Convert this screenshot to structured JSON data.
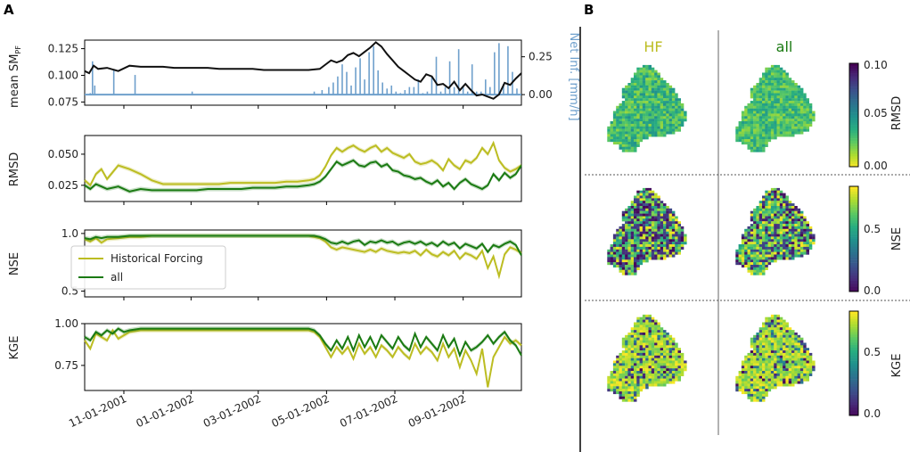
{
  "panels": {
    "a_label": "A",
    "b_label": "B"
  },
  "colors": {
    "hf": "#bcbd22",
    "all": "#1a7a12",
    "sm": "#111111",
    "inf": "#6fa0cc",
    "axis": "#000000"
  },
  "chart_data": [
    {
      "type": "line",
      "id": "mean_sm",
      "ylabel_main": "mean SM",
      "ylabel_sub": "PF",
      "ylim": [
        0.072,
        0.133
      ],
      "yticks": [
        0.075,
        0.1,
        0.125
      ],
      "ytick_labels": [
        "0.075",
        "0.100",
        "0.125"
      ],
      "x": [
        0,
        4,
        8,
        12,
        20,
        30,
        40,
        50,
        60,
        70,
        80,
        90,
        100,
        110,
        120,
        130,
        140,
        150,
        160,
        170,
        180,
        190,
        200,
        210,
        215,
        220,
        225,
        230,
        235,
        240,
        245,
        250,
        255,
        260,
        265,
        270,
        275,
        280,
        285,
        290,
        295,
        300,
        305,
        310,
        315,
        320,
        325,
        330,
        335,
        340,
        345,
        350,
        355,
        360,
        365,
        370,
        375,
        380,
        385,
        390
      ],
      "series": [
        {
          "name": "mean SM",
          "values": [
            0.104,
            0.102,
            0.109,
            0.106,
            0.107,
            0.104,
            0.109,
            0.108,
            0.108,
            0.108,
            0.107,
            0.107,
            0.107,
            0.107,
            0.106,
            0.106,
            0.106,
            0.106,
            0.105,
            0.105,
            0.105,
            0.105,
            0.105,
            0.106,
            0.11,
            0.114,
            0.112,
            0.114,
            0.119,
            0.121,
            0.118,
            0.122,
            0.126,
            0.131,
            0.127,
            0.12,
            0.114,
            0.108,
            0.104,
            0.1,
            0.096,
            0.094,
            0.101,
            0.099,
            0.091,
            0.092,
            0.088,
            0.094,
            0.086,
            0.092,
            0.086,
            0.081,
            0.082,
            0.08,
            0.078,
            0.082,
            0.093,
            0.091,
            0.097,
            0.102
          ]
        }
      ],
      "secondary": {
        "ylabel": "Net Inf. [mm/h]",
        "ylim": [
          -0.07,
          0.36
        ],
        "yticks": [
          0.0,
          0.25
        ],
        "ytick_labels": [
          "0.00",
          "0.25"
        ],
        "bars_x": [
          5,
          7,
          9,
          26,
          45,
          96,
          205,
          212,
          218,
          222,
          226,
          230,
          234,
          238,
          242,
          246,
          250,
          254,
          258,
          262,
          266,
          270,
          274,
          278,
          282,
          286,
          290,
          294,
          298,
          302,
          306,
          310,
          314,
          318,
          322,
          326,
          330,
          334,
          338,
          342,
          346,
          350,
          354,
          358,
          362,
          366,
          370,
          374,
          378,
          382,
          386
        ],
        "bars_v": [
          0.01,
          0.22,
          0.06,
          0.16,
          0.13,
          0.02,
          0.02,
          0.03,
          0.05,
          0.08,
          0.12,
          0.2,
          0.15,
          0.06,
          0.18,
          0.24,
          0.1,
          0.28,
          0.32,
          0.16,
          0.08,
          0.04,
          0.06,
          0.02,
          0.01,
          0.03,
          0.05,
          0.05,
          0.1,
          0.01,
          0.02,
          0.12,
          0.25,
          0.02,
          0.05,
          0.22,
          0.05,
          0.3,
          0.06,
          0.02,
          0.2,
          0.02,
          0.02,
          0.1,
          0.05,
          0.28,
          0.34,
          0.07,
          0.32,
          0.15,
          0.04
        ]
      }
    },
    {
      "type": "line",
      "id": "rmsd",
      "ylabel": "RMSD",
      "ylim": [
        0.012,
        0.065
      ],
      "yticks": [
        0.025,
        0.05
      ],
      "ytick_labels": [
        "0.025",
        "0.050"
      ],
      "x": [
        0,
        5,
        10,
        15,
        20,
        30,
        40,
        50,
        60,
        70,
        80,
        90,
        100,
        110,
        120,
        130,
        140,
        150,
        160,
        170,
        180,
        190,
        200,
        205,
        210,
        215,
        220,
        225,
        230,
        235,
        240,
        245,
        250,
        255,
        260,
        265,
        270,
        275,
        280,
        285,
        290,
        295,
        300,
        305,
        310,
        315,
        320,
        325,
        330,
        335,
        340,
        345,
        350,
        355,
        360,
        365,
        370,
        375,
        380,
        385,
        390
      ],
      "series": [
        {
          "name": "Historical Forcing",
          "values": [
            0.029,
            0.025,
            0.034,
            0.038,
            0.03,
            0.041,
            0.038,
            0.034,
            0.029,
            0.026,
            0.026,
            0.026,
            0.026,
            0.026,
            0.026,
            0.027,
            0.027,
            0.027,
            0.027,
            0.027,
            0.028,
            0.028,
            0.029,
            0.03,
            0.033,
            0.04,
            0.049,
            0.055,
            0.052,
            0.055,
            0.057,
            0.054,
            0.052,
            0.055,
            0.057,
            0.052,
            0.055,
            0.051,
            0.049,
            0.047,
            0.05,
            0.044,
            0.042,
            0.043,
            0.045,
            0.042,
            0.037,
            0.046,
            0.041,
            0.038,
            0.045,
            0.043,
            0.047,
            0.055,
            0.05,
            0.059,
            0.045,
            0.039,
            0.036,
            0.038,
            0.041
          ]
        },
        {
          "name": "all",
          "values": [
            0.025,
            0.022,
            0.026,
            0.024,
            0.022,
            0.024,
            0.02,
            0.022,
            0.021,
            0.021,
            0.021,
            0.021,
            0.021,
            0.022,
            0.022,
            0.022,
            0.022,
            0.023,
            0.023,
            0.023,
            0.024,
            0.024,
            0.025,
            0.026,
            0.028,
            0.032,
            0.038,
            0.044,
            0.041,
            0.043,
            0.045,
            0.041,
            0.04,
            0.043,
            0.044,
            0.04,
            0.042,
            0.037,
            0.036,
            0.033,
            0.032,
            0.03,
            0.031,
            0.028,
            0.026,
            0.029,
            0.024,
            0.027,
            0.022,
            0.027,
            0.03,
            0.026,
            0.024,
            0.022,
            0.025,
            0.034,
            0.029,
            0.035,
            0.031,
            0.034,
            0.041
          ]
        }
      ]
    },
    {
      "type": "line",
      "id": "nse",
      "ylabel": "NSE",
      "ylim": [
        0.45,
        1.03
      ],
      "yticks": [
        0.5,
        1.0
      ],
      "ytick_labels": [
        "0.5",
        "1.0"
      ],
      "legend": {
        "position": "lower-left",
        "entries": [
          "Historical Forcing",
          "all"
        ]
      },
      "x": [
        0,
        5,
        10,
        15,
        20,
        30,
        40,
        50,
        60,
        80,
        100,
        120,
        140,
        160,
        180,
        200,
        205,
        210,
        215,
        220,
        225,
        230,
        235,
        240,
        245,
        250,
        255,
        260,
        265,
        270,
        275,
        280,
        285,
        290,
        295,
        300,
        305,
        310,
        315,
        320,
        325,
        330,
        335,
        340,
        345,
        350,
        355,
        360,
        365,
        370,
        375,
        380,
        385,
        390
      ],
      "series": [
        {
          "name": "Historical Forcing",
          "values": [
            0.95,
            0.93,
            0.96,
            0.92,
            0.95,
            0.96,
            0.97,
            0.97,
            0.98,
            0.98,
            0.98,
            0.98,
            0.98,
            0.98,
            0.98,
            0.98,
            0.97,
            0.96,
            0.93,
            0.88,
            0.86,
            0.88,
            0.87,
            0.86,
            0.85,
            0.84,
            0.86,
            0.84,
            0.87,
            0.85,
            0.84,
            0.83,
            0.84,
            0.83,
            0.85,
            0.81,
            0.86,
            0.82,
            0.8,
            0.84,
            0.81,
            0.85,
            0.78,
            0.83,
            0.81,
            0.78,
            0.85,
            0.7,
            0.8,
            0.63,
            0.82,
            0.88,
            0.86,
            0.83
          ]
        },
        {
          "name": "all",
          "values": [
            0.96,
            0.95,
            0.97,
            0.96,
            0.97,
            0.97,
            0.98,
            0.98,
            0.98,
            0.98,
            0.98,
            0.98,
            0.98,
            0.98,
            0.98,
            0.98,
            0.98,
            0.97,
            0.95,
            0.92,
            0.91,
            0.93,
            0.91,
            0.93,
            0.94,
            0.9,
            0.93,
            0.92,
            0.94,
            0.92,
            0.93,
            0.9,
            0.92,
            0.93,
            0.91,
            0.93,
            0.9,
            0.92,
            0.89,
            0.93,
            0.9,
            0.92,
            0.87,
            0.91,
            0.89,
            0.87,
            0.91,
            0.84,
            0.9,
            0.88,
            0.91,
            0.93,
            0.9,
            0.81
          ]
        }
      ]
    },
    {
      "type": "line",
      "id": "kge",
      "ylabel": "KGE",
      "ylim": [
        0.6,
        1.0
      ],
      "yticks": [
        0.75,
        1.0
      ],
      "ytick_labels": [
        "0.75",
        "1.00"
      ],
      "xticks": [
        35,
        95,
        155,
        216,
        277,
        338
      ],
      "xtick_labels": [
        "11-01-2001",
        "01-01-2002",
        "03-01-2002",
        "05-01-2002",
        "07-01-2002",
        "09-01-2002"
      ],
      "x": [
        0,
        5,
        10,
        15,
        20,
        25,
        30,
        35,
        40,
        50,
        60,
        80,
        100,
        120,
        140,
        160,
        180,
        200,
        205,
        210,
        215,
        220,
        225,
        230,
        235,
        240,
        245,
        250,
        255,
        260,
        265,
        270,
        275,
        280,
        285,
        290,
        295,
        300,
        305,
        310,
        315,
        320,
        325,
        330,
        335,
        340,
        345,
        350,
        355,
        360,
        365,
        370,
        375,
        380,
        385,
        390
      ],
      "series": [
        {
          "name": "Historical Forcing",
          "values": [
            0.9,
            0.85,
            0.94,
            0.92,
            0.9,
            0.96,
            0.91,
            0.93,
            0.95,
            0.96,
            0.96,
            0.96,
            0.96,
            0.96,
            0.96,
            0.96,
            0.96,
            0.96,
            0.95,
            0.92,
            0.86,
            0.8,
            0.86,
            0.82,
            0.86,
            0.79,
            0.88,
            0.82,
            0.86,
            0.8,
            0.87,
            0.84,
            0.8,
            0.86,
            0.82,
            0.79,
            0.88,
            0.82,
            0.86,
            0.83,
            0.78,
            0.88,
            0.8,
            0.85,
            0.74,
            0.84,
            0.78,
            0.7,
            0.85,
            0.62,
            0.8,
            0.86,
            0.92,
            0.88,
            0.9,
            0.87
          ]
        },
        {
          "name": "all",
          "values": [
            0.92,
            0.9,
            0.95,
            0.93,
            0.96,
            0.94,
            0.97,
            0.95,
            0.96,
            0.97,
            0.97,
            0.97,
            0.97,
            0.97,
            0.97,
            0.97,
            0.97,
            0.97,
            0.96,
            0.93,
            0.88,
            0.84,
            0.9,
            0.85,
            0.92,
            0.84,
            0.93,
            0.86,
            0.92,
            0.85,
            0.93,
            0.89,
            0.85,
            0.92,
            0.87,
            0.84,
            0.94,
            0.86,
            0.92,
            0.88,
            0.84,
            0.93,
            0.86,
            0.91,
            0.81,
            0.89,
            0.84,
            0.86,
            0.89,
            0.93,
            0.88,
            0.92,
            0.95,
            0.9,
            0.87,
            0.81
          ]
        }
      ]
    },
    {
      "type": "heatmap",
      "id": "maps",
      "columns": [
        "HF",
        "all"
      ],
      "rows": [
        {
          "metric": "RMSD",
          "cbar_ticks": [
            "0.10",
            "0.05",
            "0.00"
          ],
          "range": [
            0.0,
            0.1
          ],
          "colormap": "viridis_r"
        },
        {
          "metric": "NSE",
          "cbar_ticks": [
            "0.5",
            "0.0"
          ],
          "range": [
            0.0,
            0.75
          ],
          "colormap": "viridis"
        },
        {
          "metric": "KGE",
          "cbar_ticks": [
            "0.5",
            "0.0"
          ],
          "range": [
            0.0,
            0.75
          ],
          "colormap": "viridis"
        }
      ]
    }
  ]
}
